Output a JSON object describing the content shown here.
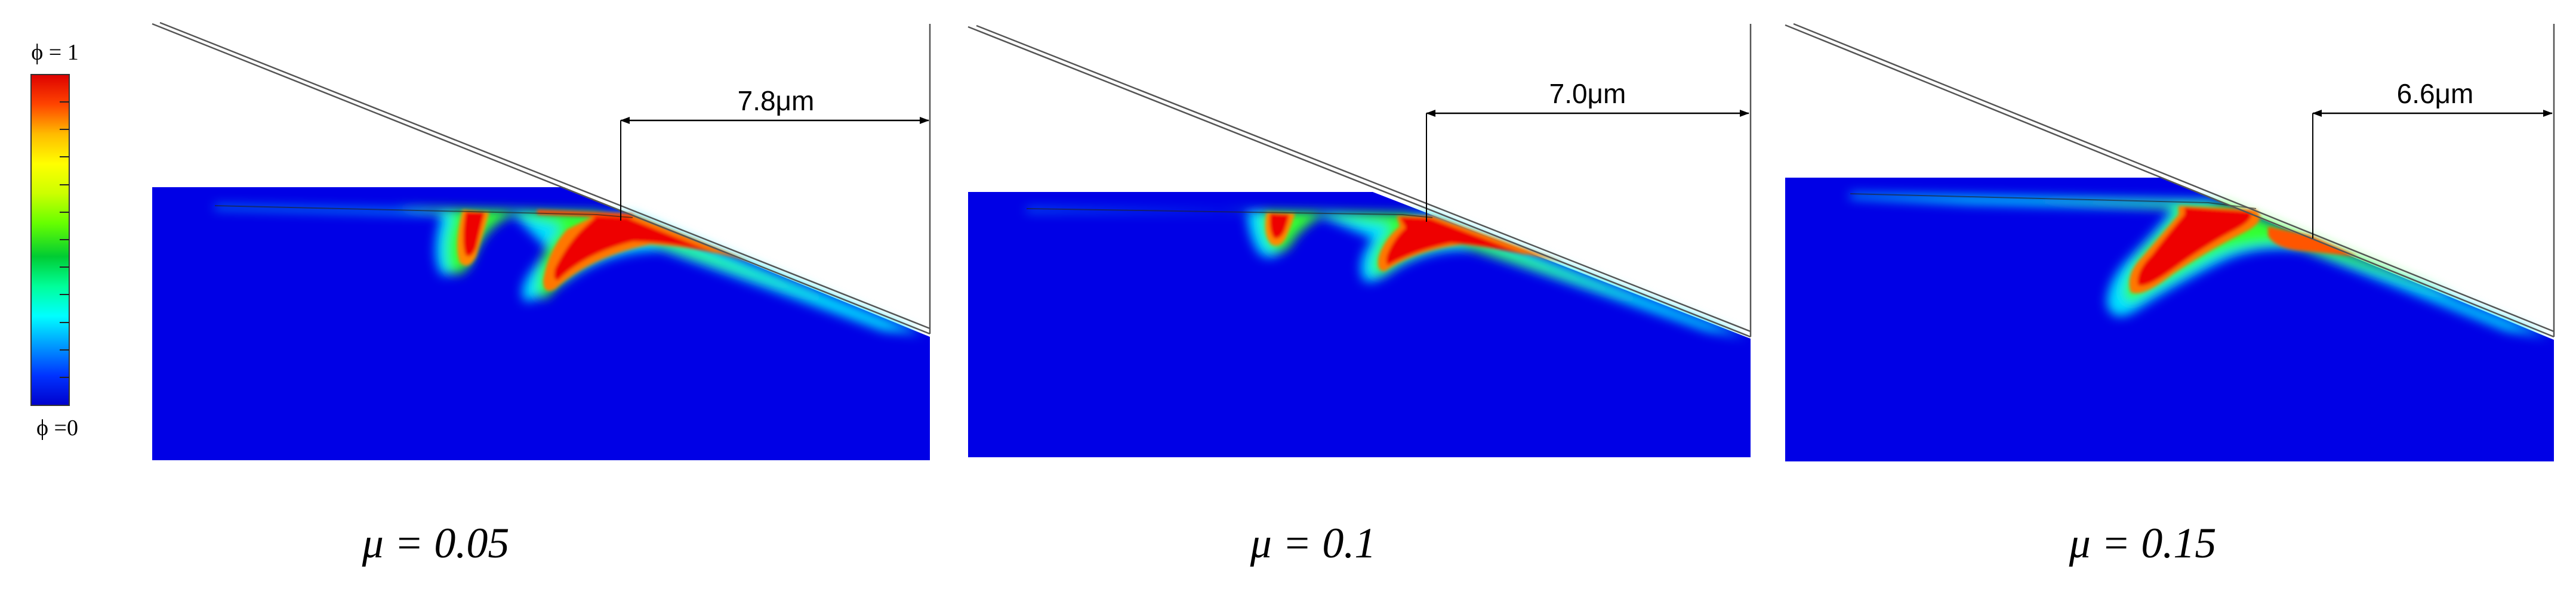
{
  "colorbar": {
    "top_label": "ϕ = 1",
    "bottom_label": "ϕ =0",
    "stops": [
      "#0000cc",
      "#0033ff",
      "#0099ff",
      "#00ffff",
      "#00ff66",
      "#33cc00",
      "#99ff00",
      "#ffff00",
      "#ffcc00",
      "#ff6600",
      "#ff0000",
      "#cc0000"
    ]
  },
  "colors": {
    "background_field": "#0000e6",
    "tool_line": "#333333",
    "dimension_line": "#000000"
  },
  "panels": [
    {
      "id": "panel-1",
      "mu_label": "μ = 0.05",
      "dimension_label": "7.8μm"
    },
    {
      "id": "panel-2",
      "mu_label": "μ = 0.1",
      "dimension_label": "7.0μm"
    },
    {
      "id": "panel-3",
      "mu_label": "μ = 0.15",
      "dimension_label": "6.6μm"
    }
  ]
}
